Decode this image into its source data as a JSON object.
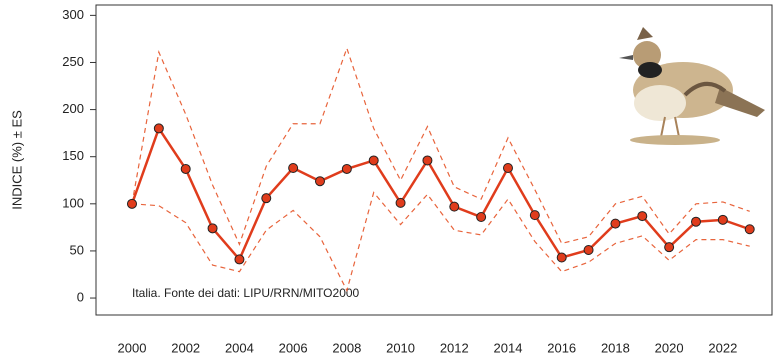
{
  "chart_data": {
    "type": "line",
    "y_label": "INDICE (%) ± ES",
    "annotation": "Italia. Fonte dei dati: LIPU/RRN/MITO2000",
    "x": [
      2000,
      2001,
      2002,
      2003,
      2004,
      2005,
      2006,
      2007,
      2008,
      2009,
      2010,
      2011,
      2012,
      2013,
      2014,
      2015,
      2016,
      2017,
      2018,
      2019,
      2020,
      2021,
      2022,
      2023
    ],
    "series": [
      {
        "color": "#e03c1c",
        "style": "solid",
        "markers": true,
        "values": [
          100,
          180,
          137,
          74,
          41,
          106,
          138,
          124,
          137,
          146,
          101,
          146,
          97,
          86,
          138,
          88,
          43,
          51,
          79,
          87,
          54,
          81,
          83,
          73
        ]
      },
      {
        "color": "#e8643c",
        "style": "dashed",
        "markers": false,
        "values": [
          100,
          261,
          195,
          120,
          57,
          140,
          185,
          185,
          265,
          180,
          125,
          182,
          118,
          105,
          170,
          115,
          58,
          65,
          100,
          108,
          68,
          100,
          102,
          92
        ]
      },
      {
        "color": "#e8643c",
        "style": "dashed",
        "markers": false,
        "values": [
          100,
          98,
          80,
          35,
          28,
          72,
          93,
          65,
          8,
          112,
          78,
          110,
          72,
          67,
          105,
          60,
          28,
          38,
          58,
          66,
          40,
          62,
          62,
          55
        ]
      }
    ],
    "xlim": [
      1998.66,
      2023.83
    ],
    "ylim": [
      -18,
      311
    ],
    "xticks": [
      2000,
      2002,
      2004,
      2006,
      2008,
      2010,
      2012,
      2014,
      2016,
      2018,
      2020,
      2022
    ],
    "yticks": [
      0,
      50,
      100,
      150,
      200,
      250,
      300
    ]
  }
}
